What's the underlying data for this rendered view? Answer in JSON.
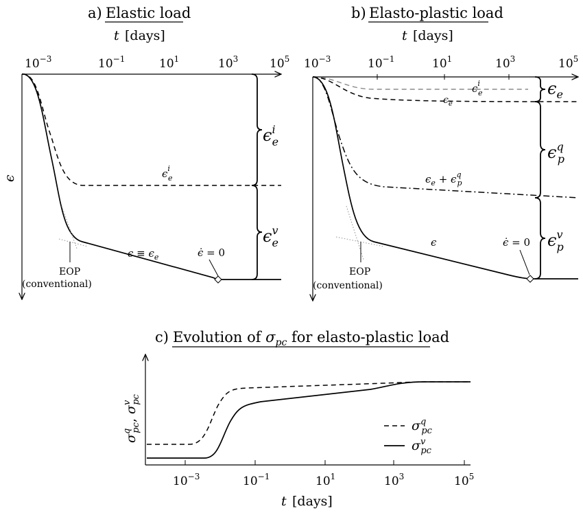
{
  "panel_a": {
    "title": "a) Elastic load",
    "xlabel": "t [days]",
    "ylabel": "ϵ",
    "x_ticks": [
      "10-3",
      "10-1",
      "101",
      "103",
      "105"
    ],
    "curve_label_dashed": "ϵei",
    "curve_label_solid": "ϵ ≡ ϵe",
    "zero_rate_label": "ϵ̇ = 0",
    "eop_label": "EOP",
    "eop_sub": "(conventional)",
    "brace_upper": "ϵei",
    "brace_lower": "ϵev"
  },
  "panel_b": {
    "title": "b) Elasto-plastic load",
    "xlabel": "t [days]",
    "x_ticks": [
      "10-3",
      "10-1",
      "101",
      "103",
      "105"
    ],
    "label_grey_dashed": "ϵei",
    "label_dashed": "ϵe",
    "label_dashdot": "ϵe + ϵpq",
    "label_solid": "ϵ",
    "zero_rate_label": "ϵ̇ = 0",
    "eop_label": "EOP",
    "eop_sub": "(conventional)",
    "brace_top": "ϵe",
    "brace_mid": "ϵpq",
    "brace_bottom": "ϵpv"
  },
  "panel_c": {
    "title": "c) Evolution of σpc for elasto-plastic load",
    "xlabel": "t [days]",
    "ylabel": "σpcq, σpcv",
    "x_ticks": [
      "10-3",
      "10-1",
      "101",
      "103",
      "105"
    ],
    "legend": [
      {
        "style": "dashed",
        "label": "σpcq"
      },
      {
        "style": "solid",
        "label": "σpcv"
      }
    ]
  },
  "colors": {
    "line": "#000000",
    "grey": "#8c8c8c",
    "dotted": "#9a9a9a"
  }
}
